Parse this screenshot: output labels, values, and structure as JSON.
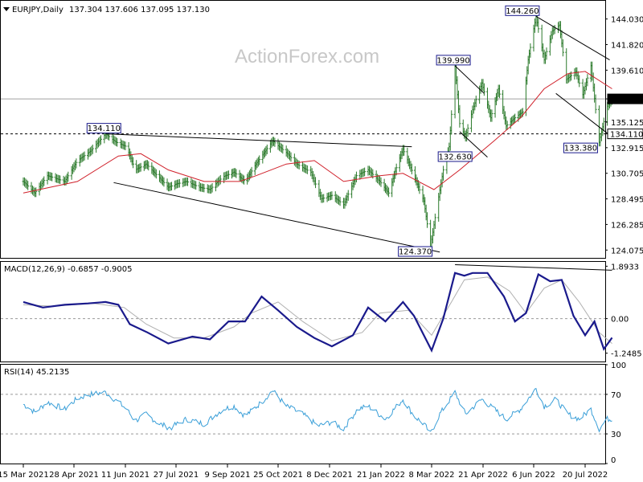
{
  "header": {
    "symbol_label": "EURJPY,Daily",
    "ohlc": "137.304 137.606 137.095 137.130",
    "symbol_icon": "triangle-down-icon"
  },
  "watermark": "ActionForex.com",
  "colors": {
    "candle": "#2b7a2b",
    "ma": "#d0202a",
    "macd": "#1a1a8c",
    "signal": "#b0b0b0",
    "rsi": "#3a9fd8",
    "trendline": "#000000",
    "current_price_tag": "#000000",
    "level_tag": "#1a1a8c"
  },
  "chart_data": [
    {
      "type": "candlestick",
      "title": "EURJPY,Daily",
      "ylim": [
        123.4,
        145.6
      ],
      "y_ticks": [
        "144.030",
        "141.820",
        "139.610",
        "137.130",
        "135.125",
        "134.110",
        "132.915",
        "130.705",
        "128.495",
        "126.285",
        "124.075"
      ],
      "x_ticks": [
        "15 Mar 2021",
        "28 Apr 2021",
        "11 Jun 2021",
        "27 Jul 2021",
        "9 Sep 2021",
        "25 Oct 2021",
        "8 Dec 2021",
        "21 Jan 2022",
        "8 Mar 2022",
        "21 Apr 2022",
        "6 Jun 2022",
        "20 Jul 2022"
      ],
      "current_price": 137.13,
      "horizontal_levels": [
        {
          "value": 134.11,
          "style": "dashed"
        }
      ],
      "annotations": [
        {
          "text": "134.110",
          "date": "2021-05-25",
          "value": 134.11
        },
        {
          "text": "139.990",
          "date": "2022-03-28",
          "value": 139.99
        },
        {
          "text": "132.630",
          "date": "2022-04-06",
          "value": 132.63
        },
        {
          "text": "144.260",
          "date": "2022-06-08",
          "value": 144.26
        },
        {
          "text": "133.380",
          "date": "2022-08-01",
          "value": 133.38
        },
        {
          "text": "124.370",
          "date": "2022-03-07",
          "value": 124.37
        }
      ],
      "trendlines": [
        {
          "from": [
            "2021-05-25",
            134.11
          ],
          "to": [
            "2022-02-18",
            133.0
          ]
        },
        {
          "from": [
            "2021-06-01",
            129.9
          ],
          "to": [
            "2022-03-15",
            123.9
          ]
        },
        {
          "from": [
            "2022-03-28",
            139.99
          ],
          "to": [
            "2022-04-22",
            137.6
          ]
        },
        {
          "from": [
            "2022-04-01",
            134.3
          ],
          "to": [
            "2022-04-25",
            132.1
          ]
        },
        {
          "from": [
            "2022-06-08",
            144.26
          ],
          "to": [
            "2022-08-10",
            140.5
          ]
        },
        {
          "from": [
            "2022-06-25",
            137.6
          ],
          "to": [
            "2022-08-10",
            134.0
          ]
        }
      ],
      "price_path": [
        [
          "2021-03-15",
          130.0
        ],
        [
          "2021-03-25",
          129.0
        ],
        [
          "2021-04-05",
          130.5
        ],
        [
          "2021-04-20",
          130.0
        ],
        [
          "2021-05-01",
          131.8
        ],
        [
          "2021-05-12",
          132.6
        ],
        [
          "2021-05-25",
          134.11
        ],
        [
          "2021-06-03",
          133.4
        ],
        [
          "2021-06-12",
          133.0
        ],
        [
          "2021-06-20",
          131.0
        ],
        [
          "2021-06-30",
          131.5
        ],
        [
          "2021-07-12",
          130.3
        ],
        [
          "2021-07-20",
          129.5
        ],
        [
          "2021-07-28",
          129.8
        ],
        [
          "2021-08-05",
          130.0
        ],
        [
          "2021-08-16",
          129.5
        ],
        [
          "2021-08-25",
          129.3
        ],
        [
          "2021-09-05",
          130.4
        ],
        [
          "2021-09-15",
          130.8
        ],
        [
          "2021-09-25",
          130.0
        ],
        [
          "2021-10-05",
          131.5
        ],
        [
          "2021-10-20",
          133.5
        ],
        [
          "2021-11-01",
          132.5
        ],
        [
          "2021-11-10",
          131.5
        ],
        [
          "2021-11-22",
          130.8
        ],
        [
          "2021-12-01",
          128.5
        ],
        [
          "2021-12-10",
          128.8
        ],
        [
          "2021-12-20",
          128.0
        ],
        [
          "2021-12-31",
          130.5
        ],
        [
          "2022-01-10",
          131.0
        ],
        [
          "2022-01-20",
          130.0
        ],
        [
          "2022-01-28",
          129.0
        ],
        [
          "2022-02-05",
          131.5
        ],
        [
          "2022-02-10",
          132.8
        ],
        [
          "2022-02-20",
          130.5
        ],
        [
          "2022-03-01",
          128.3
        ],
        [
          "2022-03-07",
          124.37
        ],
        [
          "2022-03-12",
          127.5
        ],
        [
          "2022-03-18",
          131.0
        ],
        [
          "2022-03-23",
          133.0
        ],
        [
          "2022-03-28",
          139.99
        ],
        [
          "2022-04-01",
          135.0
        ],
        [
          "2022-04-06",
          133.8
        ],
        [
          "2022-04-12",
          136.2
        ],
        [
          "2022-04-20",
          138.5
        ],
        [
          "2022-04-28",
          135.5
        ],
        [
          "2022-05-05",
          138.0
        ],
        [
          "2022-05-12",
          134.8
        ],
        [
          "2022-05-20",
          135.5
        ],
        [
          "2022-05-27",
          136.0
        ],
        [
          "2022-06-01",
          140.5
        ],
        [
          "2022-06-08",
          144.26
        ],
        [
          "2022-06-15",
          140.5
        ],
        [
          "2022-06-22",
          143.0
        ],
        [
          "2022-06-28",
          143.5
        ],
        [
          "2022-07-04",
          138.8
        ],
        [
          "2022-07-12",
          139.5
        ],
        [
          "2022-07-18",
          137.5
        ],
        [
          "2022-07-25",
          140.0
        ],
        [
          "2022-08-01",
          133.38
        ],
        [
          "2022-08-08",
          136.5
        ],
        [
          "2022-08-12",
          137.13
        ]
      ],
      "moving_average_path": [
        [
          "2021-03-15",
          129.0
        ],
        [
          "2021-05-01",
          130.0
        ],
        [
          "2021-06-05",
          132.2
        ],
        [
          "2021-06-25",
          132.4
        ],
        [
          "2021-07-20",
          131.0
        ],
        [
          "2021-08-20",
          130.0
        ],
        [
          "2021-09-20",
          130.0
        ],
        [
          "2021-10-05",
          130.5
        ],
        [
          "2021-11-01",
          131.5
        ],
        [
          "2021-11-25",
          131.8
        ],
        [
          "2021-12-20",
          130.0
        ],
        [
          "2022-01-20",
          130.5
        ],
        [
          "2022-02-10",
          130.7
        ],
        [
          "2022-03-10",
          129.3
        ],
        [
          "2022-04-01",
          131.0
        ],
        [
          "2022-05-01",
          133.5
        ],
        [
          "2022-05-25",
          135.5
        ],
        [
          "2022-06-15",
          138.0
        ],
        [
          "2022-07-05",
          139.3
        ],
        [
          "2022-07-20",
          139.5
        ],
        [
          "2022-08-12",
          138.0
        ]
      ]
    },
    {
      "type": "line",
      "title": "MACD(12,26,9) -0.6857 -0.9005",
      "ylim": [
        -1.55,
        2.05
      ],
      "y_ticks": [
        "1.8933",
        "0.00",
        "-1.2485"
      ],
      "zero_line": 0,
      "series": [
        {
          "name": "MACD",
          "values": [
            [
              "2021-03-15",
              0.6
            ],
            [
              "2021-04-01",
              0.4
            ],
            [
              "2021-04-20",
              0.5
            ],
            [
              "2021-05-10",
              0.55
            ],
            [
              "2021-05-25",
              0.6
            ],
            [
              "2021-06-05",
              0.5
            ],
            [
              "2021-06-15",
              -0.2
            ],
            [
              "2021-07-01",
              -0.5
            ],
            [
              "2021-07-20",
              -0.9
            ],
            [
              "2021-08-10",
              -0.65
            ],
            [
              "2021-08-25",
              -0.75
            ],
            [
              "2021-09-10",
              -0.1
            ],
            [
              "2021-09-25",
              -0.1
            ],
            [
              "2021-10-10",
              0.8
            ],
            [
              "2021-10-25",
              0.3
            ],
            [
              "2021-11-10",
              -0.3
            ],
            [
              "2021-11-25",
              -0.7
            ],
            [
              "2021-12-10",
              -1.0
            ],
            [
              "2021-12-28",
              -0.6
            ],
            [
              "2022-01-10",
              0.4
            ],
            [
              "2022-01-25",
              -0.1
            ],
            [
              "2022-02-10",
              0.6
            ],
            [
              "2022-02-20",
              0.1
            ],
            [
              "2022-03-08",
              -1.15
            ],
            [
              "2022-03-18",
              0.0
            ],
            [
              "2022-03-28",
              1.65
            ],
            [
              "2022-04-05",
              1.55
            ],
            [
              "2022-04-12",
              1.65
            ],
            [
              "2022-04-25",
              1.65
            ],
            [
              "2022-05-10",
              0.8
            ],
            [
              "2022-05-20",
              -0.1
            ],
            [
              "2022-05-30",
              0.2
            ],
            [
              "2022-06-10",
              1.6
            ],
            [
              "2022-06-20",
              1.35
            ],
            [
              "2022-06-30",
              1.4
            ],
            [
              "2022-07-10",
              0.1
            ],
            [
              "2022-07-20",
              -0.6
            ],
            [
              "2022-07-28",
              -0.1
            ],
            [
              "2022-08-05",
              -1.1
            ],
            [
              "2022-08-12",
              -0.69
            ]
          ]
        },
        {
          "name": "Signal",
          "values": [
            [
              "2021-03-15",
              0.5
            ],
            [
              "2021-04-10",
              0.45
            ],
            [
              "2021-05-15",
              0.55
            ],
            [
              "2021-06-10",
              0.4
            ],
            [
              "2021-06-30",
              -0.2
            ],
            [
              "2021-07-25",
              -0.7
            ],
            [
              "2021-08-20",
              -0.7
            ],
            [
              "2021-09-15",
              -0.3
            ],
            [
              "2021-10-01",
              0.2
            ],
            [
              "2021-10-25",
              0.6
            ],
            [
              "2021-11-15",
              -0.1
            ],
            [
              "2021-12-10",
              -0.8
            ],
            [
              "2022-01-05",
              -0.5
            ],
            [
              "2022-01-20",
              0.2
            ],
            [
              "2022-02-15",
              0.3
            ],
            [
              "2022-03-08",
              -0.6
            ],
            [
              "2022-03-25",
              0.6
            ],
            [
              "2022-04-05",
              1.4
            ],
            [
              "2022-04-25",
              1.5
            ],
            [
              "2022-05-15",
              1.0
            ],
            [
              "2022-05-30",
              0.2
            ],
            [
              "2022-06-15",
              1.1
            ],
            [
              "2022-06-30",
              1.4
            ],
            [
              "2022-07-15",
              0.6
            ],
            [
              "2022-08-01",
              -0.5
            ],
            [
              "2022-08-12",
              -0.9
            ]
          ]
        }
      ],
      "trendline": {
        "from": [
          "2022-03-28",
          1.95
        ],
        "to": [
          "2022-08-12",
          1.75
        ]
      }
    },
    {
      "type": "line",
      "title": "RSI(14) 45.2135",
      "ylim": [
        0,
        100
      ],
      "y_ticks": [
        "100",
        "70",
        "30",
        "0"
      ],
      "levels": [
        70,
        30
      ],
      "series": [
        {
          "name": "RSI(14)",
          "values": [
            [
              "2021-03-15",
              60
            ],
            [
              "2021-03-25",
              52
            ],
            [
              "2021-04-05",
              62
            ],
            [
              "2021-04-20",
              55
            ],
            [
              "2021-05-01",
              66
            ],
            [
              "2021-05-12",
              70
            ],
            [
              "2021-05-25",
              72
            ],
            [
              "2021-06-05",
              62
            ],
            [
              "2021-06-12",
              55
            ],
            [
              "2021-06-20",
              43
            ],
            [
              "2021-06-30",
              50
            ],
            [
              "2021-07-12",
              40
            ],
            [
              "2021-07-22",
              36
            ],
            [
              "2021-08-05",
              45
            ],
            [
              "2021-08-20",
              40
            ],
            [
              "2021-09-05",
              55
            ],
            [
              "2021-09-15",
              58
            ],
            [
              "2021-09-25",
              48
            ],
            [
              "2021-10-10",
              62
            ],
            [
              "2021-10-20",
              74
            ],
            [
              "2021-11-01",
              58
            ],
            [
              "2021-11-15",
              50
            ],
            [
              "2021-11-28",
              38
            ],
            [
              "2021-12-10",
              42
            ],
            [
              "2021-12-20",
              35
            ],
            [
              "2022-01-01",
              55
            ],
            [
              "2022-01-10",
              58
            ],
            [
              "2022-01-25",
              45
            ],
            [
              "2022-02-10",
              65
            ],
            [
              "2022-02-20",
              48
            ],
            [
              "2022-03-01",
              40
            ],
            [
              "2022-03-07",
              30
            ],
            [
              "2022-03-15",
              50
            ],
            [
              "2022-03-28",
              72
            ],
            [
              "2022-04-06",
              50
            ],
            [
              "2022-04-20",
              65
            ],
            [
              "2022-05-01",
              55
            ],
            [
              "2022-05-12",
              45
            ],
            [
              "2022-05-25",
              55
            ],
            [
              "2022-06-08",
              76
            ],
            [
              "2022-06-15",
              58
            ],
            [
              "2022-06-25",
              65
            ],
            [
              "2022-07-05",
              50
            ],
            [
              "2022-07-15",
              45
            ],
            [
              "2022-07-25",
              55
            ],
            [
              "2022-08-01",
              35
            ],
            [
              "2022-08-08",
              45
            ],
            [
              "2022-08-12",
              45.21
            ]
          ]
        }
      ]
    }
  ]
}
